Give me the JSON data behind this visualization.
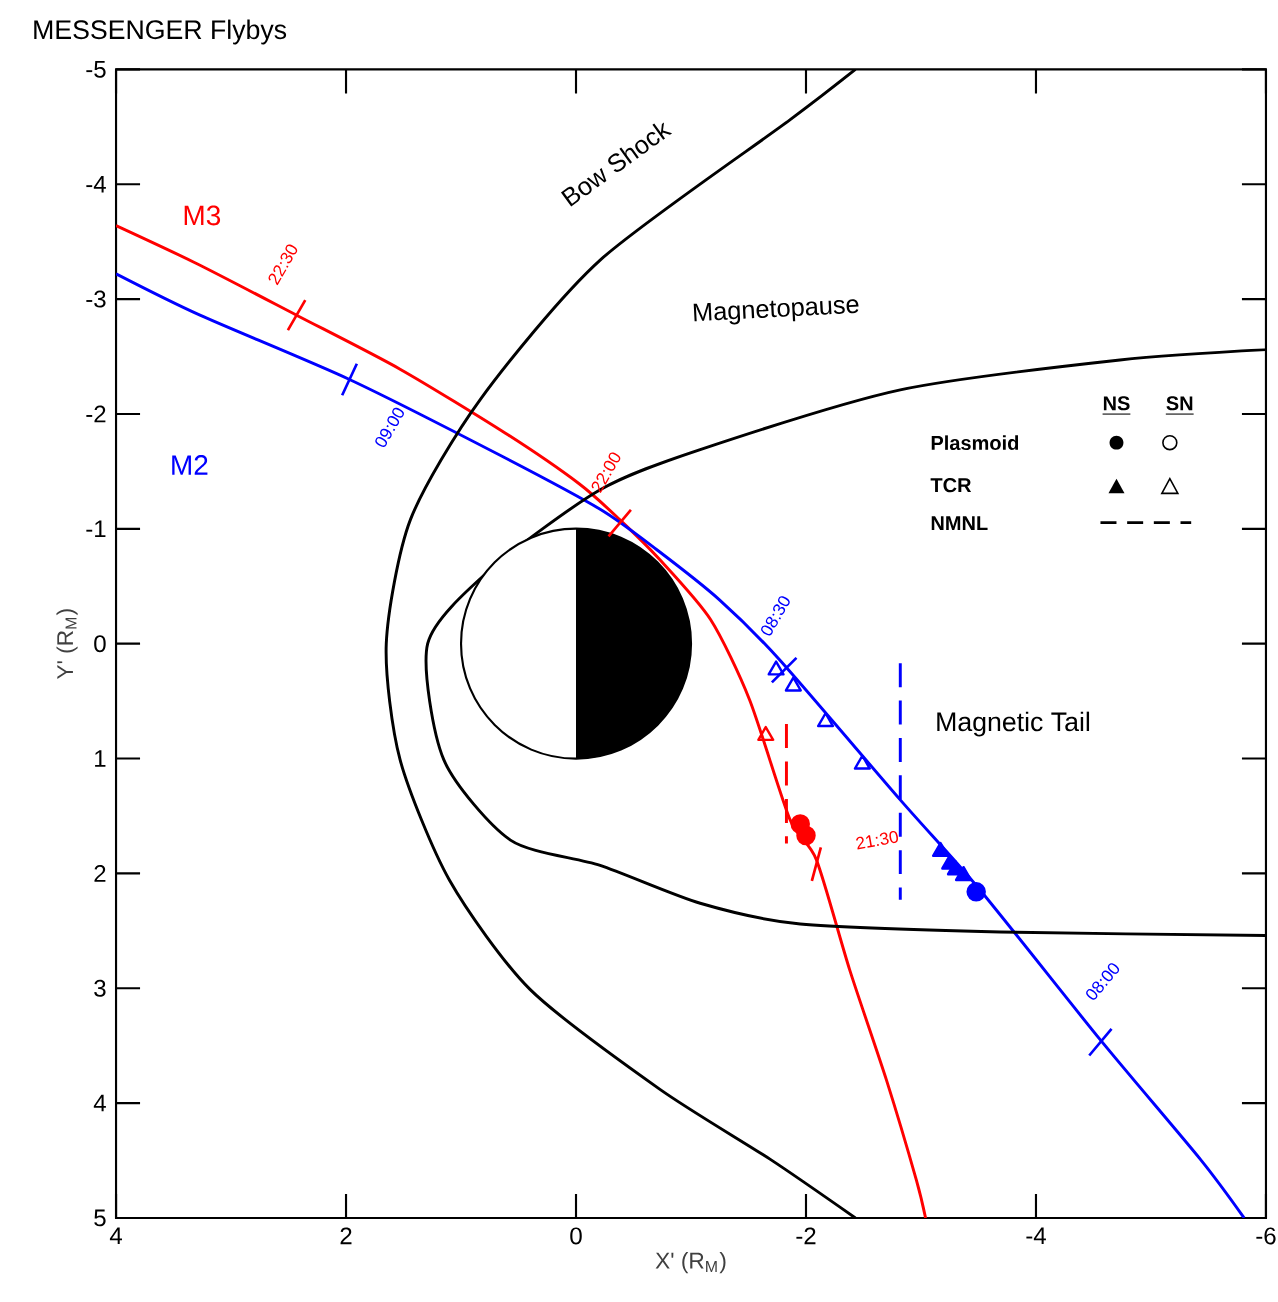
{
  "chart_data": {
    "type": "line",
    "title": "MESSENGER Flybys",
    "xlabel": "X' (R$_{M}$)",
    "ylabel": "Y' (R$_{M}$)",
    "xlim": [
      4,
      -6
    ],
    "ylim": [
      5,
      -5
    ],
    "xticks": [
      4,
      2,
      0,
      -2,
      -4,
      -6
    ],
    "yticks": [
      -5,
      -4,
      -3,
      -2,
      -1,
      0,
      1,
      2,
      3,
      4,
      5
    ],
    "marker": "none",
    "line_style": "solid",
    "grid": false,
    "series": [
      {
        "name": "M3",
        "color": "#ff0000",
        "x": [
          4,
          3.3,
          2.43,
          1.53,
          0.61,
          -0.03,
          -0.38,
          -0.73,
          -1.17,
          -1.51,
          -1.86,
          -2.09,
          -2.38,
          -2.7,
          -2.96,
          -3.04
        ],
        "values": [
          -3.64,
          -3.31,
          -2.86,
          -2.39,
          -1.83,
          -1.39,
          -1.08,
          -0.73,
          -0.21,
          0.49,
          1.53,
          1.88,
          2.84,
          3.8,
          4.67,
          5.0
        ]
      },
      {
        "name": "M2",
        "color": "#0000ff",
        "x": [
          4,
          3.27,
          1.97,
          0.66,
          -0.21,
          -0.7,
          -1.25,
          -1.77,
          -2.82,
          -3.51,
          -4.56,
          -5.43,
          -5.81
        ],
        "values": [
          -3.22,
          -2.86,
          -2.3,
          -1.64,
          -1.17,
          -0.82,
          -0.38,
          0.14,
          1.36,
          2.14,
          3.45,
          4.49,
          5.0
        ]
      },
      {
        "name": "Bow Shock",
        "color": "#000000",
        "x": [
          -2.43,
          -1.86,
          -0.21,
          0.83,
          1.44,
          1.65,
          1.53,
          1.1,
          0.4,
          -0.73,
          -1.69,
          -2.43
        ],
        "values": [
          -5.0,
          -4.56,
          -3.34,
          -2.13,
          -1.08,
          0,
          1.01,
          2.06,
          3.01,
          3.88,
          4.49,
          5.0
        ]
      },
      {
        "name": "Magnetopause",
        "color": "#000000",
        "x": [
          -6,
          -4.73,
          -2.82,
          -1.08,
          -0.21,
          0.75,
          1.29,
          1.15,
          0.57,
          -0.21,
          -1.08,
          -1.95,
          -3.69,
          -6
        ],
        "values": [
          -2.56,
          -2.47,
          -2.21,
          -1.69,
          -1.34,
          -0.64,
          0,
          1.01,
          1.71,
          1.93,
          2.26,
          2.44,
          2.51,
          2.54
        ]
      },
      {
        "type": "scatter",
        "color": "#ff0000",
        "marker": "circle",
        "x": [
          -1.95,
          -2.0
        ],
        "values": [
          1.57,
          1.67
        ]
      },
      {
        "type": "scatter",
        "color": "#ff0000",
        "marker": "triangle",
        "x": [
          -1.65
        ],
        "values": [
          0.8
        ]
      },
      {
        "type": "scatter",
        "color": "#0000ff",
        "marker": "triangle",
        "x": [
          -1.74,
          -1.89,
          -2.17,
          -2.49
        ],
        "values": [
          0.23,
          0.37,
          0.68,
          1.05
        ]
      },
      {
        "type": "scatter",
        "color": "#0000ff",
        "marker": "triangle",
        "x": [
          -3.17,
          -3.25,
          -3.3,
          -3.37
        ],
        "values": [
          1.81,
          1.92,
          1.97,
          2.02
        ]
      },
      {
        "type": "scatter",
        "color": "#0000ff",
        "marker": "circle",
        "x": [
          -3.48
        ],
        "values": [
          2.16
        ]
      },
      {
        "type": "line",
        "color": "#ff0000",
        "line_style": "dashed",
        "x": [
          -1.83,
          -1.83
        ],
        "values": [
          0.7,
          1.74
        ]
      },
      {
        "type": "line",
        "color": "#0000ff",
        "line_style": "dashed",
        "x": [
          -2.82,
          -2.82
        ],
        "values": [
          0.17,
          2.23
        ]
      }
    ],
    "annotations": [
      "Magnetic Tail",
      "NS",
      "SN",
      "Plasmoid",
      "TCR",
      "NMNL",
      {
        "text": "22:30",
        "x": 2.43,
        "y": -2.86
      },
      {
        "text": "22:00",
        "x": -0.38,
        "y": -1.05
      },
      {
        "text": "21:30",
        "x": -2.09,
        "y": 1.92
      },
      {
        "text": "09:00",
        "x": 1.97,
        "y": -2.3
      },
      {
        "text": "08:30",
        "x": -1.81,
        "y": 0.23
      },
      {
        "text": "08:00",
        "x": -4.56,
        "y": 3.47
      }
    ]
  }
}
